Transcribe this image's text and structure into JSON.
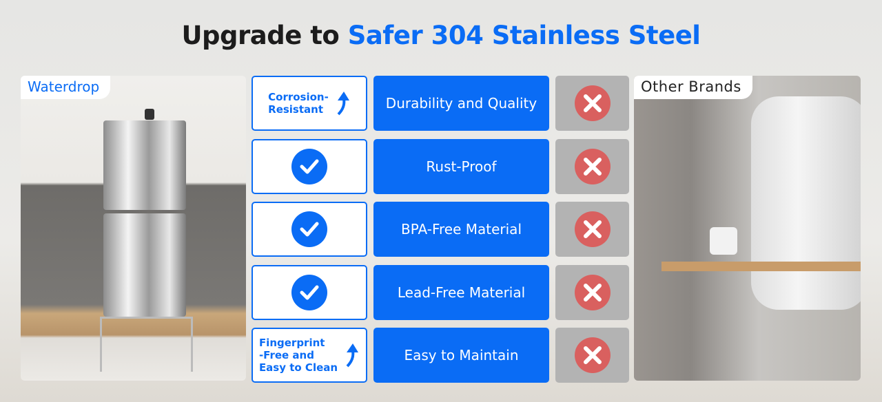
{
  "title": {
    "prefix": "Upgrade to ",
    "highlight": "Safer 304 Stainless Steel"
  },
  "colors": {
    "accent": "#0a6cf5",
    "cross": "#d9605f",
    "cross_bg": "#b3b3b3"
  },
  "left_panel": {
    "brand": "Waterdrop"
  },
  "right_panel": {
    "brand": "Other Brands"
  },
  "rows": [
    {
      "waterdrop": "Corrosion-Resistant",
      "waterdrop_lines": [
        "Corrosion-",
        "Resistant"
      ],
      "waterdrop_icon": "arrow-up-icon",
      "feature": "Durability and Quality",
      "other_icon": "cross-icon"
    },
    {
      "waterdrop_icon": "check-icon",
      "feature": "Rust-Proof",
      "other_icon": "cross-icon"
    },
    {
      "waterdrop_icon": "check-icon",
      "feature": "BPA-Free Material",
      "other_icon": "cross-icon"
    },
    {
      "waterdrop_icon": "check-icon",
      "feature": "Lead-Free Material",
      "other_icon": "cross-icon"
    },
    {
      "waterdrop": "Fingerprint-Free and Easy to Clean",
      "waterdrop_lines": [
        "Fingerprint",
        "-Free and",
        "Easy to Clean"
      ],
      "waterdrop_icon": "arrow-up-icon",
      "feature": "Easy to Maintain",
      "other_icon": "cross-icon"
    }
  ]
}
